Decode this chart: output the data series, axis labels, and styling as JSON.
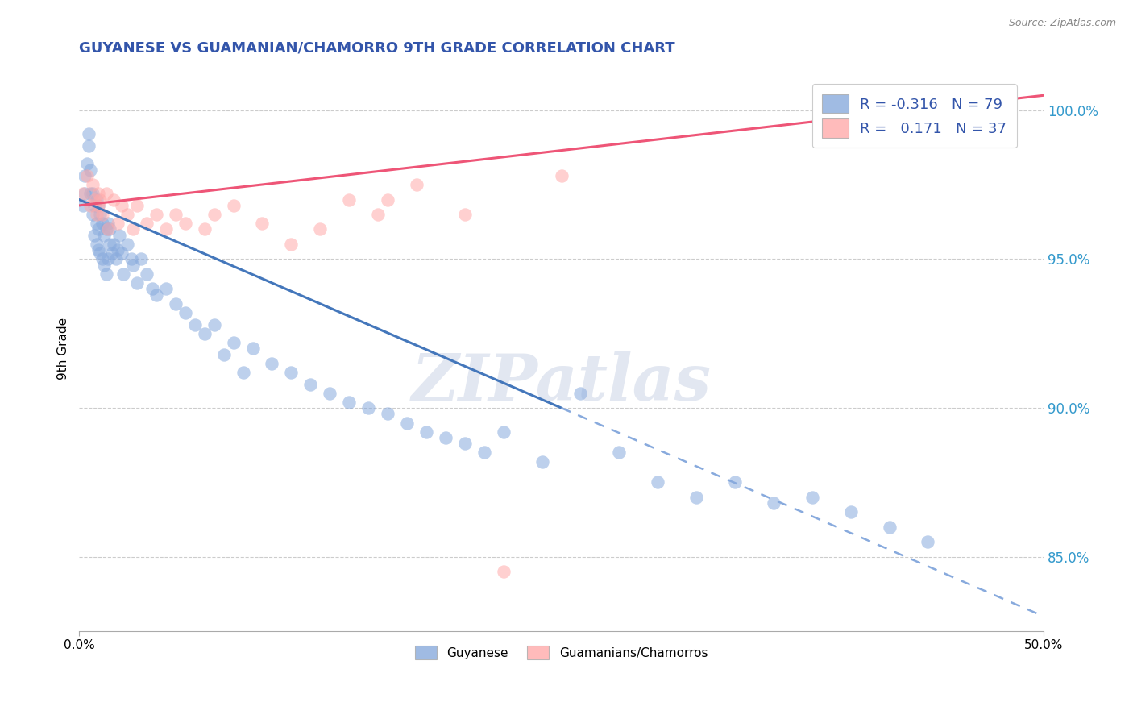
{
  "title": "GUYANESE VS GUAMANIAN/CHAMORRO 9TH GRADE CORRELATION CHART",
  "source": "Source: ZipAtlas.com",
  "ylabel": "9th Grade",
  "blue_label": "Guyanese",
  "pink_label": "Guamanians/Chamorros",
  "R_blue": -0.316,
  "N_blue": 79,
  "R_pink": 0.171,
  "N_pink": 37,
  "legend_text_blue": "R = -0.316   N = 79",
  "legend_text_pink": "R =   0.171   N = 37",
  "xlim": [
    0.0,
    50.0
  ],
  "ylim": [
    82.5,
    101.5
  ],
  "y_tick_positions": [
    85.0,
    90.0,
    95.0,
    100.0
  ],
  "y_tick_labels": [
    "85.0%",
    "90.0%",
    "95.0%",
    "100.0%"
  ],
  "blue_line_color": "#4477BB",
  "pink_line_color": "#EE5577",
  "blue_dot_color": "#88AADD",
  "pink_dot_color": "#FFAAAA",
  "blue_line_y0": 97.0,
  "blue_line_y50": 83.0,
  "blue_solid_end_x": 25.0,
  "pink_line_y0": 96.8,
  "pink_line_y50": 100.5,
  "watermark": "ZIPatlas",
  "background_color": "#FFFFFF",
  "grid_color": "#CCCCCC",
  "title_color": "#3355AA",
  "axis_label_color": "#3399CC",
  "blue_x": [
    0.2,
    0.3,
    0.3,
    0.4,
    0.5,
    0.5,
    0.6,
    0.6,
    0.7,
    0.7,
    0.8,
    0.8,
    0.9,
    0.9,
    0.9,
    1.0,
    1.0,
    1.0,
    1.1,
    1.1,
    1.2,
    1.2,
    1.3,
    1.3,
    1.4,
    1.4,
    1.5,
    1.5,
    1.6,
    1.6,
    1.7,
    1.8,
    1.9,
    2.0,
    2.1,
    2.2,
    2.3,
    2.5,
    2.7,
    2.8,
    3.0,
    3.2,
    3.5,
    3.8,
    4.0,
    4.5,
    5.0,
    5.5,
    6.0,
    6.5,
    7.0,
    7.5,
    8.0,
    8.5,
    9.0,
    10.0,
    11.0,
    12.0,
    13.0,
    14.0,
    15.0,
    16.0,
    17.0,
    18.0,
    19.0,
    20.0,
    21.0,
    22.0,
    24.0,
    26.0,
    28.0,
    30.0,
    32.0,
    34.0,
    36.0,
    38.0,
    40.0,
    42.0,
    44.0
  ],
  "blue_y": [
    96.8,
    97.2,
    97.8,
    98.2,
    98.8,
    99.2,
    97.2,
    98.0,
    96.5,
    97.2,
    95.8,
    96.8,
    95.5,
    96.2,
    97.0,
    95.3,
    96.0,
    96.8,
    95.2,
    96.5,
    95.0,
    96.2,
    94.8,
    95.8,
    94.5,
    96.0,
    95.0,
    96.2,
    95.5,
    96.0,
    95.2,
    95.5,
    95.0,
    95.3,
    95.8,
    95.2,
    94.5,
    95.5,
    95.0,
    94.8,
    94.2,
    95.0,
    94.5,
    94.0,
    93.8,
    94.0,
    93.5,
    93.2,
    92.8,
    92.5,
    92.8,
    91.8,
    92.2,
    91.2,
    92.0,
    91.5,
    91.2,
    90.8,
    90.5,
    90.2,
    90.0,
    89.8,
    89.5,
    89.2,
    89.0,
    88.8,
    88.5,
    89.2,
    88.2,
    90.5,
    88.5,
    87.5,
    87.0,
    87.5,
    86.8,
    87.0,
    86.5,
    86.0,
    85.5
  ],
  "pink_x": [
    0.2,
    0.4,
    0.6,
    0.7,
    0.8,
    0.9,
    1.0,
    1.0,
    1.1,
    1.2,
    1.4,
    1.5,
    1.8,
    2.0,
    2.2,
    2.5,
    2.8,
    3.0,
    3.5,
    4.0,
    4.5,
    5.0,
    5.5,
    6.5,
    7.0,
    8.0,
    9.5,
    11.0,
    12.5,
    14.0,
    15.5,
    16.0,
    17.5,
    20.0,
    22.0,
    25.0,
    46.0
  ],
  "pink_y": [
    97.2,
    97.8,
    96.8,
    97.5,
    97.0,
    96.5,
    97.2,
    96.8,
    97.0,
    96.5,
    97.2,
    96.0,
    97.0,
    96.2,
    96.8,
    96.5,
    96.0,
    96.8,
    96.2,
    96.5,
    96.0,
    96.5,
    96.2,
    96.0,
    96.5,
    96.8,
    96.2,
    95.5,
    96.0,
    97.0,
    96.5,
    97.0,
    97.5,
    96.5,
    84.5,
    97.8,
    100.5
  ]
}
